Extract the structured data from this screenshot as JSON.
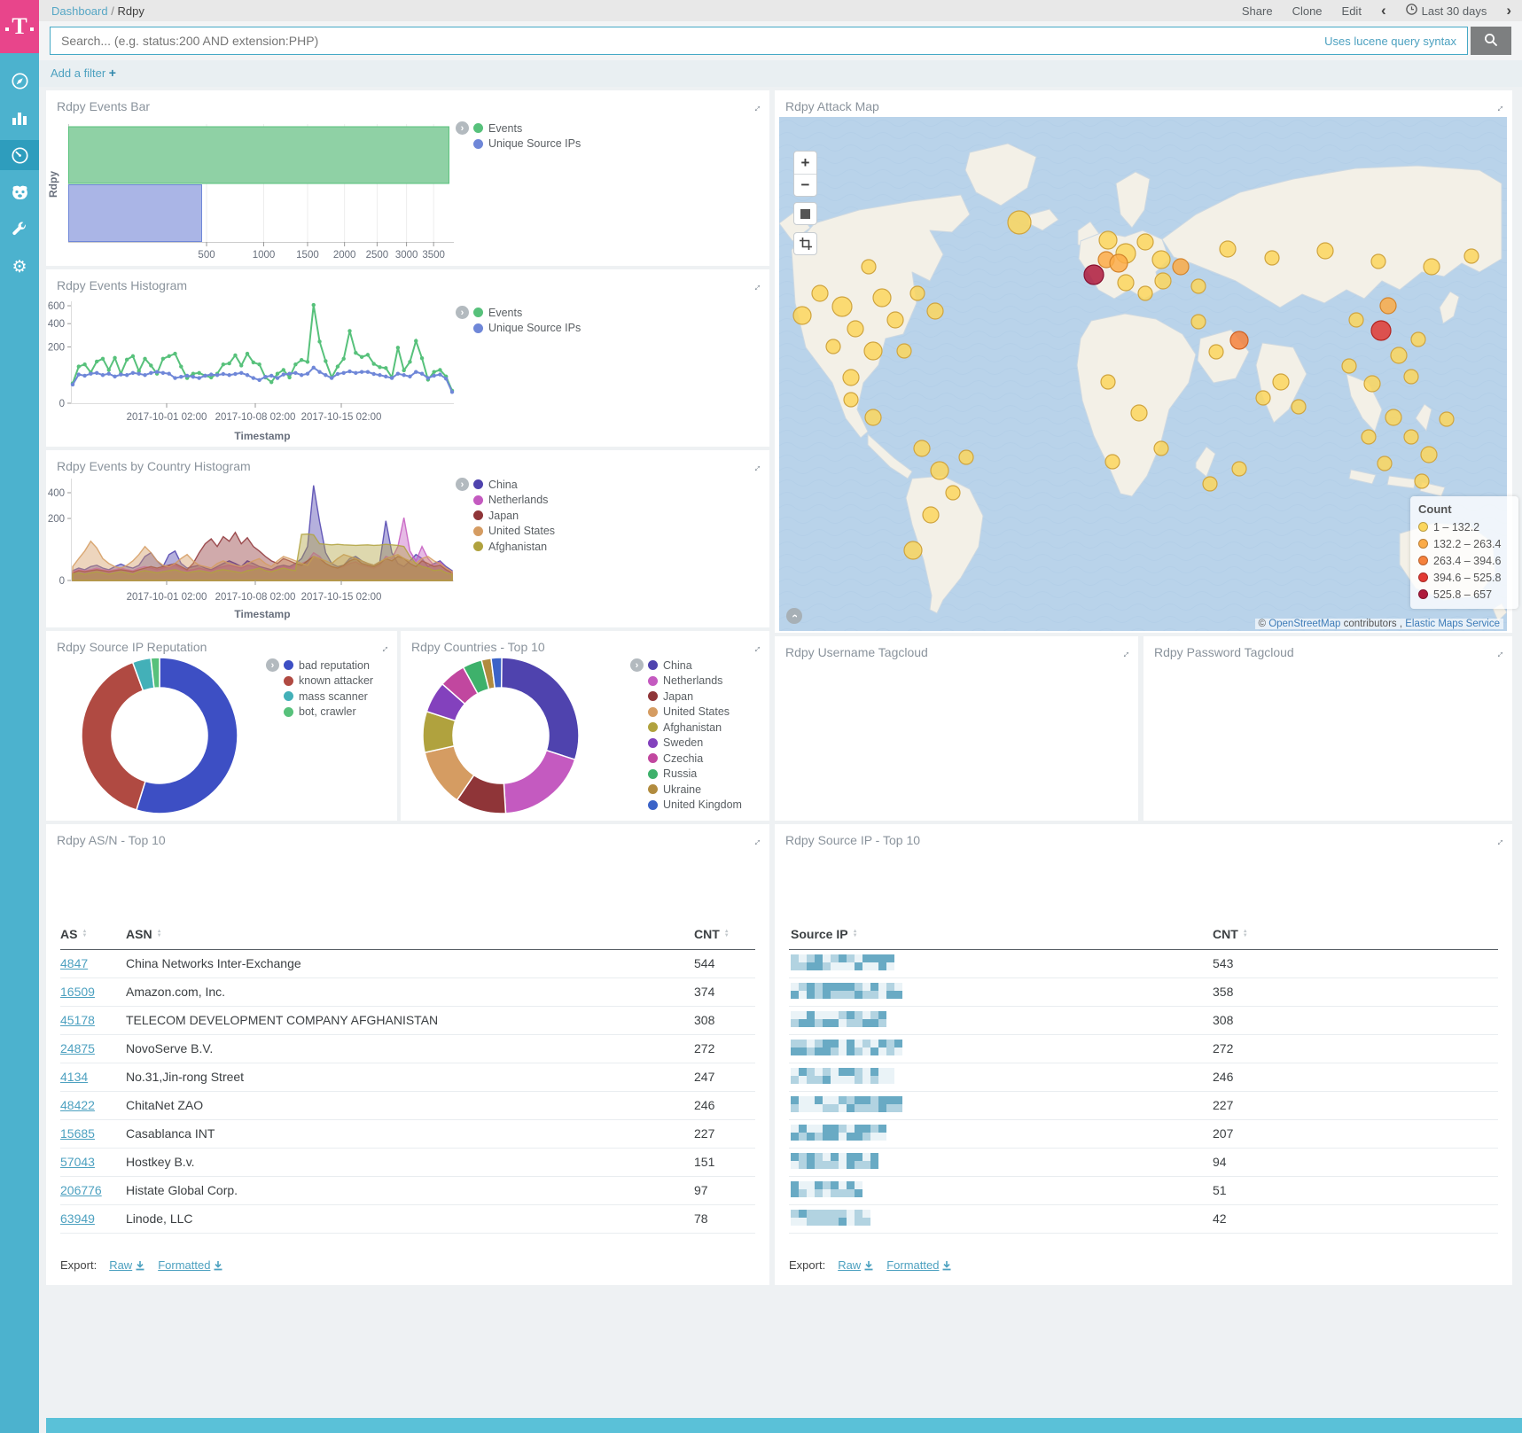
{
  "sidebar": {
    "items": [
      {
        "name": "discover",
        "icon": "compass-icon"
      },
      {
        "name": "visualize",
        "icon": "bar-chart-icon"
      },
      {
        "name": "dashboard",
        "icon": "dashboard-icon",
        "active": true
      },
      {
        "name": "timelion",
        "icon": "timelion-icon"
      },
      {
        "name": "dev-tools",
        "icon": "wrench-icon"
      },
      {
        "name": "management",
        "icon": "gear-icon"
      }
    ]
  },
  "header": {
    "breadcrumb_root": "Dashboard",
    "breadcrumb_sep": "/",
    "breadcrumb_current": "Rdpy",
    "actions": {
      "share": "Share",
      "clone": "Clone",
      "edit": "Edit"
    },
    "prev": "‹",
    "next": "›",
    "time_range": "Last 30 days"
  },
  "search": {
    "placeholder": "Search... (e.g. status:200 AND extension:PHP)",
    "hint": "Uses lucene query syntax"
  },
  "filter_bar": {
    "label": "Add a filter ",
    "plus": "+"
  },
  "panels": {
    "events_bar": {
      "title": "Rdpy Events Bar",
      "y_label": "Rdpy",
      "x_ticks": [
        500,
        1000,
        1500,
        2000,
        2500,
        3000,
        3500
      ],
      "series": [
        {
          "label": "Events",
          "color": "#57c17b",
          "fill": "#8fd1a5",
          "value": 3800
        },
        {
          "label": "Unique Source IPs",
          "color": "#6f87d8",
          "fill": "#aab5e6",
          "value": 465
        }
      ]
    },
    "events_histogram": {
      "title": "Rdpy Events Histogram",
      "x_label": "Timestamp",
      "y_ticks": [
        0,
        200,
        400,
        600
      ],
      "x_tick_labels": [
        "2017-10-01 02:00",
        "2017-10-08 02:00",
        "2017-10-15 02:00"
      ],
      "series": [
        {
          "label": "Events",
          "color": "#57c17b",
          "values": [
            25,
            85,
            95,
            60,
            110,
            125,
            70,
            130,
            55,
            120,
            140,
            65,
            125,
            90,
            55,
            125,
            140,
            155,
            85,
            40,
            55,
            58,
            48,
            42,
            55,
            95,
            100,
            145,
            90,
            155,
            105,
            95,
            42,
            28,
            55,
            70,
            42,
            95,
            118,
            108,
            610,
            240,
            112,
            42,
            85,
            125,
            330,
            160,
            135,
            148,
            98,
            82,
            78,
            42,
            195,
            68,
            108,
            245,
            128,
            35,
            62,
            70,
            45,
            10
          ]
        },
        {
          "label": "Unique Source IPs",
          "color": "#6f87d8",
          "values": [
            22,
            52,
            48,
            55,
            58,
            50,
            55,
            45,
            52,
            50,
            58,
            55,
            50,
            58,
            62,
            58,
            55,
            40,
            44,
            48,
            44,
            40,
            48,
            52,
            50,
            54,
            50,
            54,
            58,
            50,
            40,
            34,
            44,
            48,
            40,
            52,
            55,
            58,
            50,
            55,
            80,
            62,
            50,
            40,
            54,
            58,
            64,
            58,
            62,
            62,
            54,
            50,
            45,
            40,
            55,
            50,
            45,
            62,
            55,
            40,
            48,
            52,
            38,
            8
          ]
        }
      ]
    },
    "country_histogram": {
      "title": "Rdpy Events by Country Histogram",
      "x_label": "Timestamp",
      "y_ticks": [
        0,
        200,
        400
      ],
      "x_tick_labels": [
        "2017-10-01 02:00",
        "2017-10-08 02:00",
        "2017-10-15 02:00"
      ],
      "series": [
        {
          "label": "China",
          "color": "#4f43ae",
          "values": [
            5,
            8,
            6,
            10,
            12,
            8,
            6,
            10,
            14,
            10,
            8,
            12,
            30,
            40,
            20,
            10,
            35,
            45,
            15,
            8,
            10,
            12,
            8,
            6,
            10,
            15,
            20,
            15,
            10,
            20,
            15,
            10,
            8,
            6,
            10,
            12,
            10,
            15,
            25,
            60,
            470,
            180,
            40,
            15,
            10,
            12,
            25,
            30,
            20,
            15,
            12,
            18,
            185,
            40,
            15,
            10,
            20,
            35,
            25,
            10,
            15,
            20,
            10,
            5
          ]
        },
        {
          "label": "Netherlands",
          "color": "#c45ac0",
          "values": [
            4,
            6,
            5,
            6,
            8,
            6,
            5,
            6,
            8,
            6,
            5,
            8,
            10,
            8,
            6,
            8,
            10,
            12,
            8,
            5,
            6,
            8,
            6,
            5,
            8,
            10,
            12,
            10,
            8,
            12,
            10,
            8,
            6,
            5,
            8,
            10,
            8,
            12,
            15,
            20,
            40,
            30,
            15,
            10,
            8,
            10,
            15,
            18,
            12,
            10,
            8,
            12,
            30,
            25,
            60,
            205,
            45,
            20,
            60,
            25,
            12,
            18,
            8,
            4
          ]
        },
        {
          "label": "Japan",
          "color": "#8f3538",
          "values": [
            3,
            5,
            4,
            5,
            6,
            5,
            4,
            5,
            6,
            5,
            4,
            6,
            8,
            10,
            8,
            10,
            12,
            15,
            10,
            6,
            15,
            40,
            70,
            90,
            60,
            100,
            80,
            120,
            70,
            95,
            60,
            45,
            30,
            20,
            15,
            25,
            20,
            15,
            12,
            20,
            30,
            25,
            15,
            10,
            8,
            12,
            20,
            25,
            15,
            12,
            10,
            15,
            25,
            20,
            30,
            25,
            15,
            10,
            20,
            15,
            10,
            12,
            6,
            3
          ]
        },
        {
          "label": "United States",
          "color": "#d59c62",
          "values": [
            10,
            25,
            45,
            80,
            55,
            25,
            15,
            10,
            8,
            12,
            20,
            35,
            60,
            40,
            20,
            12,
            10,
            15,
            25,
            35,
            20,
            12,
            10,
            8,
            15,
            20,
            15,
            12,
            10,
            15,
            20,
            25,
            15,
            10,
            20,
            30,
            25,
            20,
            15,
            12,
            30,
            25,
            20,
            15,
            25,
            35,
            30,
            25,
            20,
            15,
            12,
            18,
            25,
            30,
            35,
            25,
            20,
            15,
            25,
            30,
            20,
            15,
            8,
            4
          ]
        },
        {
          "label": "Afghanistan",
          "color": "#b0a23e",
          "values": [
            2,
            3,
            2,
            3,
            4,
            3,
            2,
            3,
            4,
            3,
            2,
            4,
            5,
            4,
            3,
            4,
            5,
            6,
            4,
            3,
            4,
            5,
            4,
            3,
            5,
            6,
            5,
            4,
            3,
            5,
            6,
            8,
            5,
            4,
            6,
            8,
            6,
            5,
            110,
            112,
            108,
            70,
            68,
            66,
            68,
            66,
            65,
            64,
            65,
            66,
            64,
            65,
            68,
            66,
            64,
            60,
            30,
            15,
            10,
            8,
            5,
            6,
            3,
            2
          ]
        }
      ]
    },
    "ip_reputation": {
      "title": "Rdpy Source IP Reputation",
      "slices": [
        {
          "label": "bad reputation",
          "color": "#3d4fc4",
          "pct": 54.8
        },
        {
          "label": "known attacker",
          "color": "#b04a42",
          "pct": 39.6
        },
        {
          "label": "mass scanner",
          "color": "#43b0b8",
          "pct": 3.8
        },
        {
          "label": "bot, crawler",
          "color": "#57c17b",
          "pct": 1.8
        }
      ]
    },
    "countries_top10": {
      "title": "Rdpy Countries - Top 10",
      "slices": [
        {
          "label": "China",
          "color": "#4f43ae",
          "pct": 30
        },
        {
          "label": "Netherlands",
          "color": "#c45ac0",
          "pct": 19
        },
        {
          "label": "Japan",
          "color": "#8f3538",
          "pct": 10.5
        },
        {
          "label": "United States",
          "color": "#d59c62",
          "pct": 12
        },
        {
          "label": "Afghanistan",
          "color": "#b0a23e",
          "pct": 8.5
        },
        {
          "label": "Sweden",
          "color": "#8341bd",
          "pct": 6.5
        },
        {
          "label": "Czechia",
          "color": "#c1479f",
          "pct": 5.5
        },
        {
          "label": "Russia",
          "color": "#3eb16b",
          "pct": 4
        },
        {
          "label": "Ukraine",
          "color": "#b18b3e",
          "pct": 2
        },
        {
          "label": "United Kingdom",
          "color": "#3b63c8",
          "pct": 2.2
        }
      ]
    },
    "attack_map": {
      "title": "Rdpy Attack Map",
      "controls": {
        "zoom_in": "+",
        "zoom_out": "−"
      },
      "legend_title": "Count",
      "legend": [
        {
          "label": "1 – 132.2",
          "color": "#fbd65d"
        },
        {
          "label": "132.2 – 263.4",
          "color": "#fbab48"
        },
        {
          "label": "263.4 – 394.6",
          "color": "#f5813c"
        },
        {
          "label": "394.6 – 525.8",
          "color": "#e23a33"
        },
        {
          "label": "525.8 – 657",
          "color": "#ae1a3c"
        }
      ],
      "attribution": {
        "prefix": "©",
        "link1": "OpenStreetMap",
        "middle": "contributors ,",
        "link2": "Elastic Maps Service"
      },
      "points": [
        [
          26,
          224,
          10,
          1
        ],
        [
          46,
          199,
          9,
          1
        ],
        [
          71,
          214,
          11,
          1
        ],
        [
          86,
          239,
          9,
          1
        ],
        [
          61,
          259,
          8,
          1
        ],
        [
          116,
          204,
          10,
          1
        ],
        [
          131,
          229,
          9,
          1
        ],
        [
          106,
          264,
          10,
          1
        ],
        [
          141,
          264,
          8,
          1
        ],
        [
          81,
          294,
          9,
          1
        ],
        [
          156,
          199,
          8,
          1
        ],
        [
          176,
          219,
          9,
          1
        ],
        [
          101,
          169,
          8,
          1
        ],
        [
          81,
          319,
          8,
          1
        ],
        [
          106,
          339,
          9,
          1
        ],
        [
          161,
          374,
          9,
          1
        ],
        [
          181,
          399,
          10,
          1
        ],
        [
          196,
          424,
          8,
          1
        ],
        [
          171,
          449,
          9,
          1
        ],
        [
          151,
          489,
          10,
          1
        ],
        [
          211,
          384,
          8,
          1
        ],
        [
          271,
          119,
          13,
          1
        ],
        [
          371,
          139,
          10,
          1
        ],
        [
          391,
          154,
          11,
          1
        ],
        [
          413,
          141,
          9,
          1
        ],
        [
          431,
          161,
          10,
          1
        ],
        [
          369,
          161,
          9,
          2
        ],
        [
          391,
          187,
          9,
          1
        ],
        [
          413,
          199,
          8,
          1
        ],
        [
          433,
          185,
          9,
          1
        ],
        [
          453,
          169,
          9,
          2
        ],
        [
          473,
          191,
          8,
          1
        ],
        [
          383,
          165,
          10,
          2
        ],
        [
          355,
          178,
          11,
          5
        ],
        [
          506,
          149,
          9,
          1
        ],
        [
          556,
          159,
          8,
          1
        ],
        [
          616,
          151,
          9,
          1
        ],
        [
          676,
          163,
          8,
          1
        ],
        [
          736,
          169,
          9,
          1
        ],
        [
          781,
          157,
          8,
          1
        ],
        [
          519,
          252,
          10,
          3
        ],
        [
          473,
          231,
          8,
          1
        ],
        [
          493,
          265,
          8,
          1
        ],
        [
          371,
          299,
          8,
          1
        ],
        [
          406,
          334,
          9,
          1
        ],
        [
          431,
          374,
          8,
          1
        ],
        [
          376,
          389,
          8,
          1
        ],
        [
          486,
          414,
          8,
          1
        ],
        [
          566,
          299,
          9,
          1
        ],
        [
          586,
          327,
          8,
          1
        ],
        [
          546,
          317,
          8,
          1
        ],
        [
          651,
          229,
          8,
          1
        ],
        [
          699,
          269,
          9,
          1
        ],
        [
          713,
          293,
          8,
          1
        ],
        [
          669,
          301,
          9,
          1
        ],
        [
          643,
          281,
          8,
          1
        ],
        [
          721,
          251,
          8,
          1
        ],
        [
          687,
          213,
          9,
          2
        ],
        [
          679,
          241,
          11,
          4
        ],
        [
          693,
          339,
          9,
          1
        ],
        [
          713,
          361,
          8,
          1
        ],
        [
          733,
          381,
          9,
          1
        ],
        [
          683,
          391,
          8,
          1
        ],
        [
          665,
          361,
          8,
          1
        ],
        [
          753,
          341,
          8,
          1
        ],
        [
          725,
          411,
          8,
          1
        ],
        [
          519,
          397,
          8,
          1
        ]
      ]
    },
    "username_tagcloud": {
      "title": "Rdpy Username Tagcloud"
    },
    "password_tagcloud": {
      "title": "Rdpy Password Tagcloud"
    },
    "asn_table": {
      "title": "Rdpy AS/N - Top 10",
      "columns": [
        "AS",
        "ASN",
        "CNT"
      ],
      "rows": [
        [
          "4847",
          "China Networks Inter-Exchange",
          "544"
        ],
        [
          "16509",
          "Amazon.com, Inc.",
          "374"
        ],
        [
          "45178",
          "TELECOM DEVELOPMENT COMPANY AFGHANISTAN",
          "308"
        ],
        [
          "24875",
          "NovoServe B.V.",
          "272"
        ],
        [
          "4134",
          "No.31,Jin-rong Street",
          "247"
        ],
        [
          "48422",
          "ChitaNet ZAO",
          "246"
        ],
        [
          "15685",
          "Casablanca INT",
          "227"
        ],
        [
          "57043",
          "Hostkey B.v.",
          "151"
        ],
        [
          "206776",
          "Histate Global Corp.",
          "97"
        ],
        [
          "63949",
          "Linode, LLC",
          "78"
        ]
      ],
      "export_label": "Export:",
      "export_raw": "Raw",
      "export_formatted": "Formatted"
    },
    "ip_table": {
      "title": "Rdpy Source IP - Top 10",
      "columns": [
        "Source IP",
        "CNT"
      ],
      "cnt": [
        "543",
        "358",
        "308",
        "272",
        "246",
        "227",
        "207",
        "94",
        "51",
        "42"
      ],
      "blur_widths": [
        117,
        126,
        108,
        126,
        117,
        126,
        112,
        99,
        81,
        95
      ],
      "export_label": "Export:",
      "export_raw": "Raw",
      "export_formatted": "Formatted"
    }
  }
}
